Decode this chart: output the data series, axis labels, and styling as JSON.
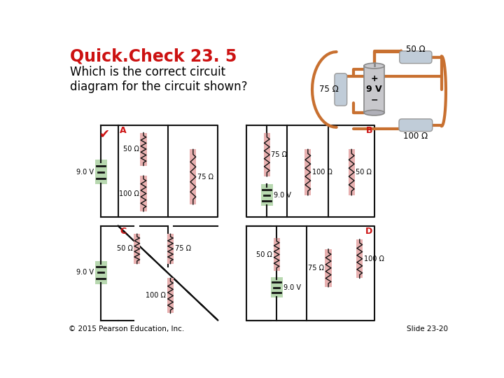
{
  "title": "Quick.Check 23. 5",
  "title_color": "#cc1111",
  "subtitle": "Which is the correct circuit\ndiagram for the circuit shown?",
  "subtitle_color": "#000000",
  "bg_color": "#ffffff",
  "footer_left": "© 2015 Pearson Education, Inc.",
  "footer_right": "Slide 23-20",
  "resistor_color": "#e8b0b0",
  "battery_color": "#b8d8b0",
  "wire_color": "#111111",
  "label_color": "#cc1111",
  "checkmark_color": "#cc1111",
  "copper_color": "#c87030",
  "comp3d_color": "#c0ccd8",
  "batt3d_color": "#c8c8cc"
}
